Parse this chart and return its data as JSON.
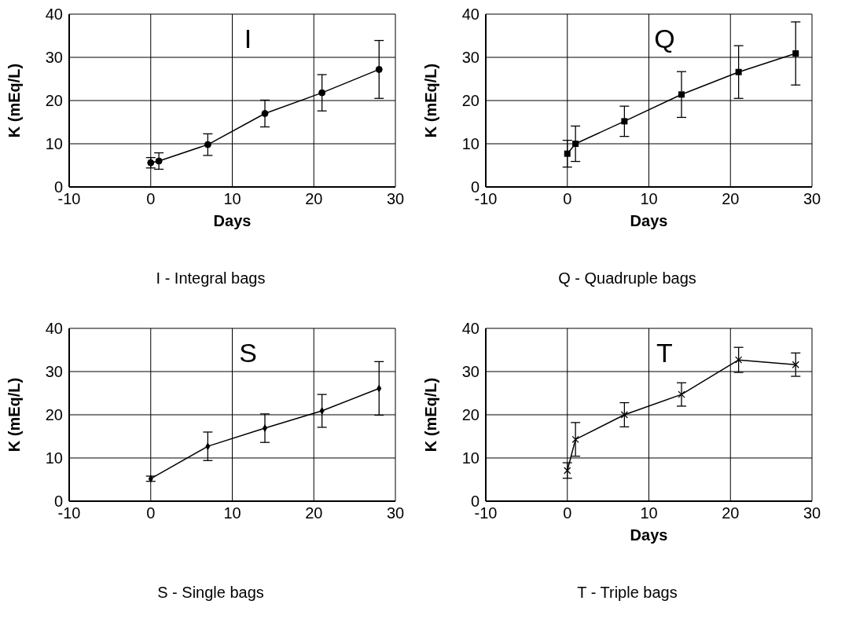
{
  "chart_data": [
    {
      "type": "line",
      "title": "I",
      "xlabel": "Days",
      "ylabel": "K (mEq/L)",
      "x": [
        0,
        1,
        7,
        14,
        21,
        28
      ],
      "series": [
        {
          "color": "#000000",
          "values": [
            5.6,
            6,
            9.8,
            17,
            21.8,
            27.2
          ],
          "errors": [
            1.2,
            1.9,
            2.5,
            3.1,
            4.2,
            6.7
          ]
        }
      ],
      "xlim": [
        -10,
        30
      ],
      "xticks": [
        -10,
        0,
        10,
        20,
        30
      ],
      "ylim": [
        0,
        40
      ],
      "yticks": [
        0,
        10,
        20,
        30,
        40
      ],
      "grid": true,
      "marker": "circle",
      "line_style": "solid",
      "annotations": [
        "I - Integral bags"
      ]
    },
    {
      "type": "line",
      "title": "Q",
      "xlabel": "Days",
      "ylabel": "K (mEq/L)",
      "x": [
        0,
        1,
        7,
        14,
        21,
        28
      ],
      "series": [
        {
          "color": "#000000",
          "values": [
            7.7,
            10,
            15.2,
            21.4,
            26.6,
            30.9
          ],
          "errors": [
            3.1,
            4.1,
            3.5,
            5.3,
            6.1,
            7.3
          ]
        }
      ],
      "xlim": [
        -10,
        30
      ],
      "xticks": [
        -10,
        0,
        10,
        20,
        30
      ],
      "ylim": [
        0,
        40
      ],
      "yticks": [
        0,
        10,
        20,
        30,
        40
      ],
      "grid": true,
      "marker": "square",
      "line_style": "solid",
      "annotations": [
        "Q - Quadruple bags"
      ]
    },
    {
      "type": "line",
      "title": "S",
      "ylabel": "K (mEq/L)",
      "x": [
        0,
        7,
        14,
        21,
        28
      ],
      "series": [
        {
          "color": "#000000",
          "values": [
            5.2,
            12.7,
            16.9,
            20.9,
            26.1
          ],
          "errors": [
            0.6,
            3.3,
            3.3,
            3.8,
            6.2
          ]
        }
      ],
      "xlim": [
        -10,
        30
      ],
      "xticks": [
        -10,
        0,
        10,
        20,
        30
      ],
      "ylim": [
        0,
        40
      ],
      "yticks": [
        0,
        10,
        20,
        30,
        40
      ],
      "grid": true,
      "marker": "diamond",
      "line_style": "solid",
      "annotations": [
        "S - Single bags"
      ]
    },
    {
      "type": "line",
      "title": "T",
      "xlabel": "Days",
      "ylabel": "K (mEq/L)",
      "x": [
        0,
        1,
        7,
        14,
        21,
        28
      ],
      "series": [
        {
          "color": "#000000",
          "values": [
            7.1,
            14.3,
            20,
            24.7,
            32.7,
            31.6
          ],
          "errors": [
            1.8,
            3.9,
            2.8,
            2.7,
            2.9,
            2.7
          ]
        }
      ],
      "xlim": [
        -10,
        30
      ],
      "xticks": [
        -10,
        0,
        10,
        20,
        30
      ],
      "ylim": [
        0,
        40
      ],
      "yticks": [
        0,
        10,
        20,
        30,
        40
      ],
      "grid": true,
      "marker": "cross",
      "line_style": "solid",
      "annotations": [
        "T - Triple bags"
      ]
    }
  ]
}
